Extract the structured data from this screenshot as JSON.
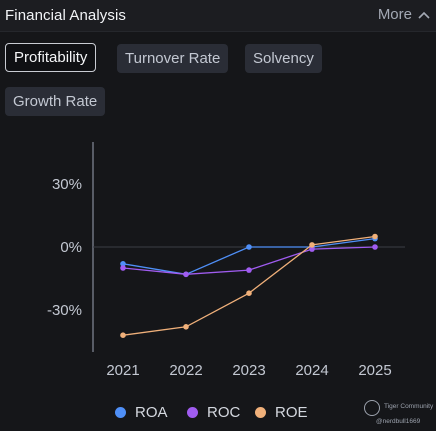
{
  "header": {
    "title": "Financial Analysis",
    "more_label": "More"
  },
  "tabs": [
    {
      "label": "Profitability",
      "active": true
    },
    {
      "label": "Turnover Rate",
      "active": false
    },
    {
      "label": "Solvency",
      "active": false
    },
    {
      "label": "Growth Rate",
      "active": false
    }
  ],
  "chart_data": {
    "type": "line",
    "x": [
      "2021",
      "2022",
      "2023",
      "2024",
      "2025"
    ],
    "yticks": [
      30,
      0,
      -30
    ],
    "ytick_labels": [
      "30%",
      "0%",
      "-30%"
    ],
    "ylim": [
      -50,
      50
    ],
    "grid": false,
    "legend_position": "bottom",
    "series": [
      {
        "name": "ROA",
        "color": "#4f8ff7",
        "values": [
          -8,
          -13,
          0,
          0,
          4
        ]
      },
      {
        "name": "ROC",
        "color": "#a05cf0",
        "values": [
          -10,
          -13,
          -11,
          -1,
          0
        ]
      },
      {
        "name": "ROE",
        "color": "#f0b07a",
        "values": [
          -42,
          -38,
          -22,
          1,
          5
        ]
      }
    ]
  },
  "watermark": {
    "line1": "Tiger Community",
    "line2": "@nerdbull1669"
  },
  "colors": {
    "background": "#151619",
    "axis": "#6e7380",
    "text": "#c3c8d2"
  }
}
